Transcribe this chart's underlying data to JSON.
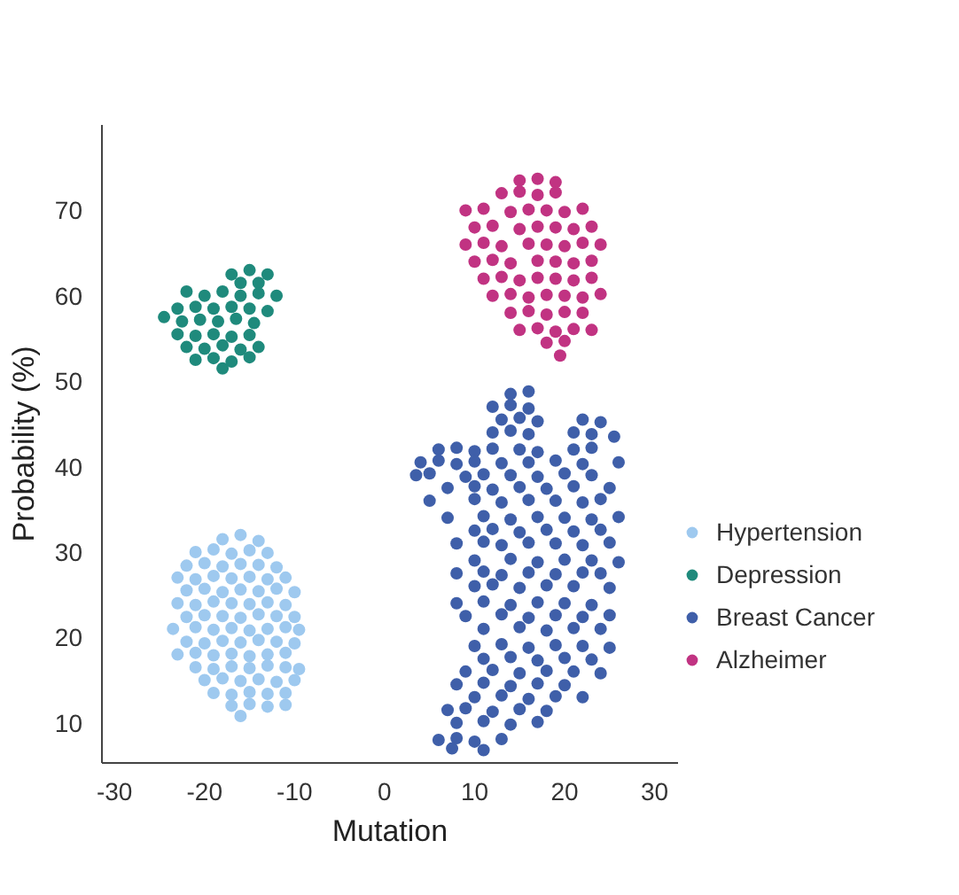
{
  "chart_data": {
    "type": "scatter",
    "xlabel": "Mutation",
    "ylabel": "Probability (%)",
    "xlim": [
      -31.4,
      32.6
    ],
    "ylim": [
      5.3,
      80
    ],
    "xticks": [
      -30,
      -20,
      -10,
      0,
      10,
      20,
      30
    ],
    "yticks": [
      10,
      20,
      30,
      40,
      50,
      60,
      70
    ],
    "grid": false,
    "legend": "right",
    "marker": "circle",
    "series": [
      {
        "name": "Hypertension",
        "color": "#9ec9ef",
        "x": [
          -18,
          -16,
          -14,
          -21,
          -19,
          -17,
          -15,
          -13,
          -22,
          -20,
          -18,
          -16,
          -14,
          -12,
          -23,
          -21,
          -19,
          -17,
          -15,
          -13,
          -11,
          -22,
          -20,
          -18,
          -16,
          -14,
          -12,
          -10,
          -23,
          -21,
          -19,
          -17,
          -15,
          -13,
          -11,
          -22,
          -20,
          -18,
          -16,
          -14,
          -12,
          -10,
          -23.5,
          -21,
          -19,
          -17,
          -15,
          -13,
          -11,
          -9.5,
          -22,
          -20,
          -18,
          -16,
          -14,
          -12,
          -10,
          -23,
          -21,
          -19,
          -17,
          -15,
          -13,
          -11,
          -21,
          -19,
          -17,
          -15,
          -13,
          -11,
          -9.5,
          -20,
          -18,
          -16,
          -14,
          -12,
          -10,
          -19,
          -17,
          -15,
          -13,
          -11,
          -17,
          -15,
          -13,
          -11,
          -16
        ],
        "values": [
          31.5,
          32,
          31.3,
          30,
          30.3,
          29.8,
          30.2,
          29.9,
          28.4,
          28.7,
          28.3,
          28.6,
          28.5,
          28.2,
          27,
          26.8,
          27.2,
          26.9,
          27.1,
          26.8,
          27,
          25.5,
          25.7,
          25.3,
          25.6,
          25.4,
          25.7,
          25.3,
          24,
          23.8,
          24.2,
          24,
          23.9,
          24.1,
          23.8,
          22.4,
          22.6,
          22.5,
          22.3,
          22.7,
          22.5,
          22.4,
          21,
          21.2,
          20.9,
          21.1,
          20.8,
          21,
          21.2,
          20.9,
          19.5,
          19.3,
          19.6,
          19.4,
          19.7,
          19.5,
          19.3,
          18,
          18.2,
          17.9,
          18.1,
          17.8,
          18,
          18.2,
          16.5,
          16.3,
          16.6,
          16.4,
          16.7,
          16.5,
          16.3,
          15,
          15.2,
          14.9,
          15.1,
          14.8,
          15,
          13.5,
          13.3,
          13.6,
          13.4,
          13.5,
          12,
          12.2,
          11.9,
          12.1,
          10.8
        ]
      },
      {
        "name": "Depression",
        "color": "#1f8a7c",
        "x": [
          -17,
          -15,
          -13,
          -16,
          -14,
          -22,
          -20,
          -18,
          -16,
          -12,
          -14,
          -23,
          -21,
          -19,
          -17,
          -15,
          -13,
          -24.5,
          -22.5,
          -20.5,
          -18.5,
          -16.5,
          -14.5,
          -23,
          -21,
          -19,
          -17,
          -15,
          -22,
          -20,
          -18,
          -16,
          -14,
          -21,
          -19,
          -17,
          -15,
          -18
        ],
        "values": [
          62.5,
          63,
          62.5,
          61.5,
          61.5,
          60.5,
          60,
          60.5,
          60,
          60,
          60.3,
          58.5,
          58.7,
          58.5,
          58.7,
          58.5,
          58.2,
          57.5,
          57,
          57.2,
          57,
          57.3,
          56.8,
          55.5,
          55.3,
          55.5,
          55.2,
          55.4,
          54,
          53.8,
          54.2,
          53.7,
          54,
          52.5,
          52.7,
          52.3,
          52.8,
          51.5
        ]
      },
      {
        "name": "Breast Cancer",
        "color": "#3f5fa9",
        "x": [
          14,
          16,
          12,
          14,
          16,
          13,
          15,
          17,
          22,
          24,
          12,
          14,
          16,
          21,
          23,
          25.5,
          6,
          8,
          10,
          12,
          15,
          17,
          21,
          23,
          4,
          6,
          8,
          10,
          13,
          16,
          19,
          22,
          26,
          3.5,
          5,
          9,
          11,
          14,
          17,
          20,
          23,
          7,
          10,
          12,
          15,
          18,
          21,
          25,
          5,
          10,
          13,
          16,
          19,
          22,
          24,
          7,
          11,
          14,
          17,
          20,
          23,
          26,
          10,
          12,
          15,
          18,
          21,
          24,
          8,
          11,
          13,
          16,
          19,
          22,
          25,
          10,
          14,
          17,
          20,
          23,
          26,
          8,
          11,
          13,
          16,
          19,
          22,
          24,
          10,
          12,
          15,
          18,
          21,
          25,
          8,
          11,
          14,
          17,
          20,
          23,
          9,
          13,
          16,
          19,
          22,
          25,
          11,
          15,
          18,
          21,
          24,
          10,
          13,
          16,
          19,
          22,
          25,
          11,
          14,
          17,
          20,
          23,
          9,
          12,
          15,
          18,
          21,
          24,
          8,
          11,
          14,
          17,
          20,
          10,
          13,
          16,
          19,
          22,
          7,
          9,
          12,
          15,
          18,
          8,
          11,
          14,
          17,
          6,
          8,
          10,
          13,
          7.5,
          11
        ],
        "values": [
          48.5,
          48.8,
          47,
          47.2,
          46.8,
          45.5,
          45.7,
          45.3,
          45.5,
          45.2,
          44,
          44.2,
          43.8,
          44,
          43.8,
          43.5,
          42,
          42.2,
          41.8,
          42.1,
          42,
          41.7,
          42,
          42.2,
          40.5,
          40.7,
          40.3,
          40.6,
          40.4,
          40.5,
          40.7,
          40.3,
          40.5,
          39,
          39.2,
          38.8,
          39.1,
          39,
          38.8,
          39.2,
          39,
          37.5,
          37.7,
          37.3,
          37.6,
          37.4,
          37.7,
          37.5,
          36,
          36.2,
          35.8,
          36.1,
          36,
          35.8,
          36.2,
          34,
          34.2,
          33.8,
          34.1,
          34,
          33.8,
          34.1,
          32.5,
          32.7,
          32.3,
          32.6,
          32.4,
          32.6,
          31,
          31.2,
          30.8,
          31.1,
          31,
          30.8,
          31.1,
          29,
          29.2,
          28.8,
          29.1,
          29,
          28.8,
          27.5,
          27.7,
          27.3,
          27.6,
          27.4,
          27.6,
          27.5,
          26,
          26.2,
          25.8,
          26.1,
          26,
          25.8,
          24,
          24.2,
          23.8,
          24.1,
          24,
          23.8,
          22.5,
          22.7,
          22.3,
          22.6,
          22.4,
          22.6,
          21,
          21.2,
          20.8,
          21.1,
          21,
          19,
          19.2,
          18.8,
          19.1,
          19,
          18.8,
          17.5,
          17.7,
          17.3,
          17.6,
          17.4,
          16,
          16.2,
          15.8,
          16.1,
          16,
          15.8,
          14.5,
          14.7,
          14.3,
          14.6,
          14.4,
          13,
          13.2,
          12.8,
          13.1,
          13,
          11.5,
          11.7,
          11.3,
          11.6,
          11.4,
          10,
          10.2,
          9.8,
          10.1,
          8,
          8.2,
          7.8,
          8.1,
          7,
          6.8
        ]
      },
      {
        "name": "Alzheimer",
        "color": "#c13382",
        "x": [
          15,
          17,
          19,
          13,
          15,
          17,
          19,
          9,
          11,
          14,
          16,
          18,
          20,
          22,
          10,
          12,
          15,
          17,
          19,
          21,
          23,
          9,
          11,
          13,
          16,
          18,
          20,
          22,
          24,
          10,
          12,
          14,
          17,
          19,
          21,
          23,
          11,
          13,
          15,
          17,
          19,
          21,
          23,
          12,
          14,
          16,
          18,
          20,
          22,
          24,
          14,
          16,
          18,
          20,
          22,
          15,
          17,
          19,
          21,
          23,
          18,
          20,
          19.5
        ],
        "values": [
          73.5,
          73.7,
          73.3,
          72,
          72.2,
          71.8,
          72.1,
          70,
          70.2,
          69.8,
          70.1,
          70,
          69.8,
          70.2,
          68,
          68.2,
          67.8,
          68.1,
          68,
          67.8,
          68.1,
          66,
          66.2,
          65.8,
          66.1,
          66,
          65.8,
          66.2,
          66,
          64,
          64.2,
          63.8,
          64.1,
          64,
          63.8,
          64.1,
          62,
          62.2,
          61.8,
          62.1,
          62,
          61.8,
          62.1,
          60,
          60.2,
          59.8,
          60.1,
          60,
          59.8,
          60.2,
          58,
          58.2,
          57.8,
          58.1,
          58,
          56,
          56.2,
          55.8,
          56.1,
          56,
          54.5,
          54.7,
          53
        ]
      }
    ]
  }
}
